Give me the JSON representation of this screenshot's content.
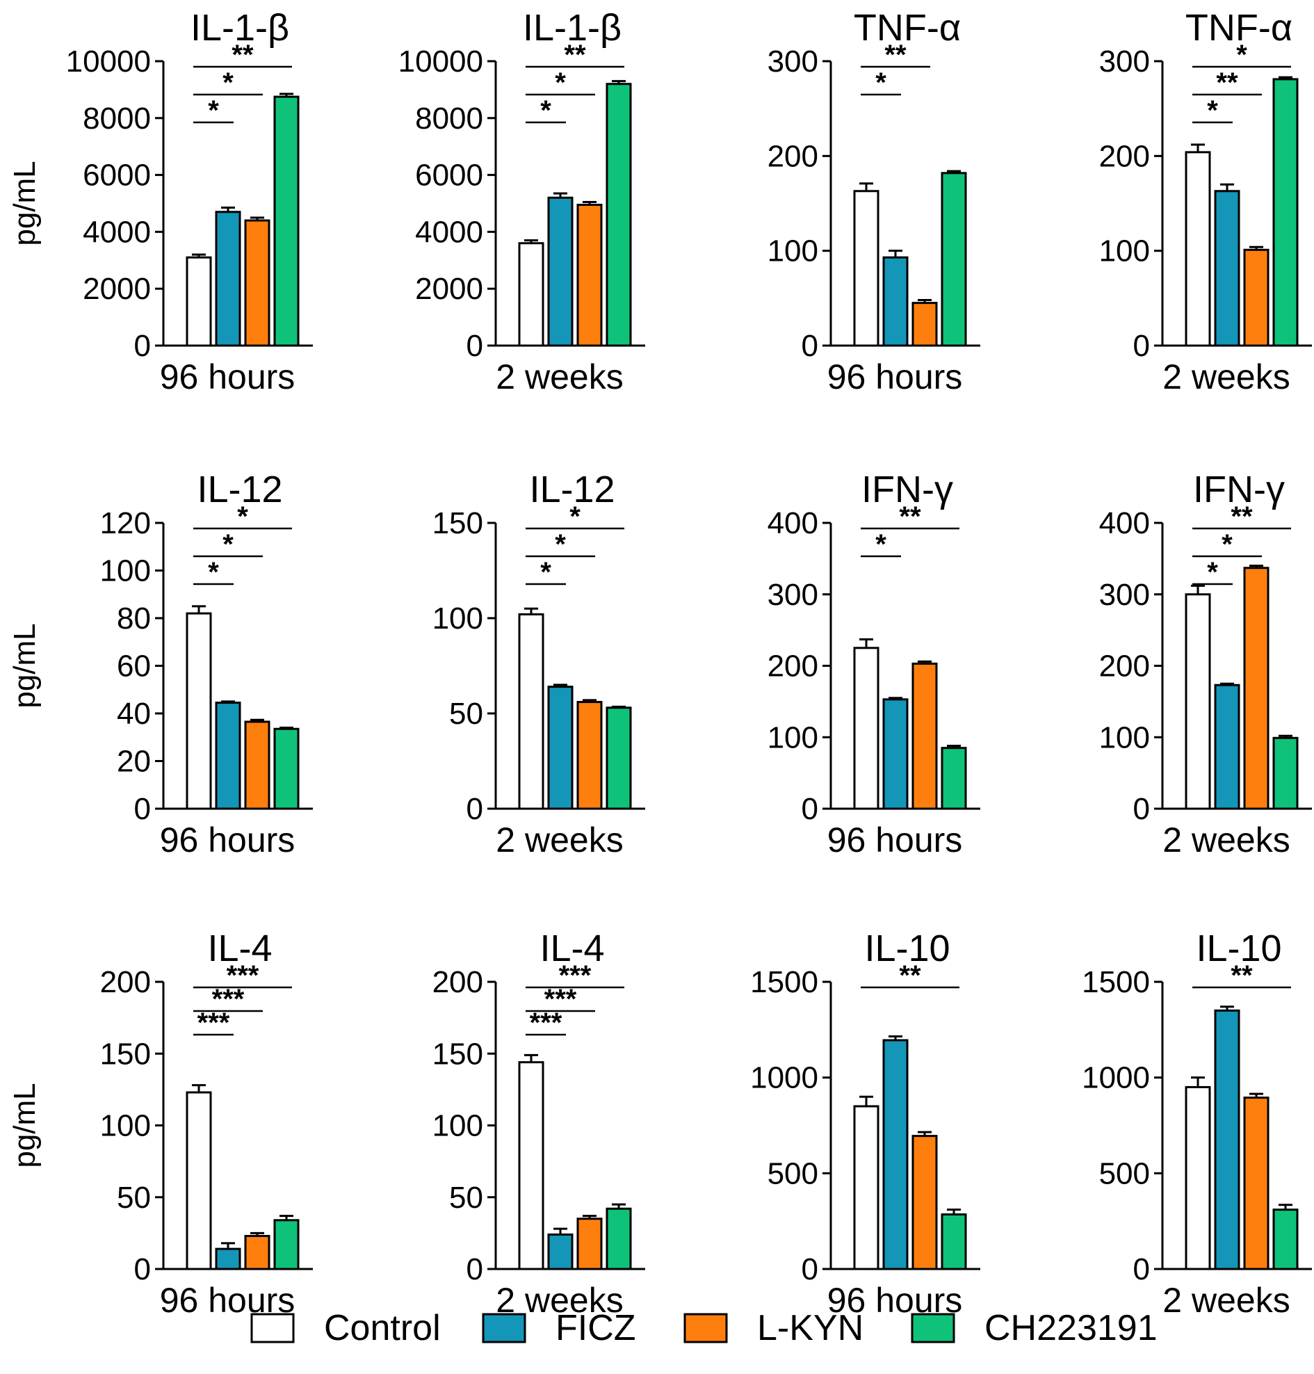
{
  "legend": {
    "items": [
      {
        "label": "Control",
        "color": "#ffffff"
      },
      {
        "label": "FICZ",
        "color": "#1496b8"
      },
      {
        "label": "L-KYN",
        "color": "#ff7f0e"
      },
      {
        "label": "CH223191",
        "color": "#0fc27a"
      }
    ]
  },
  "chart_data": [
    {
      "type": "bar",
      "title": "IL-1-β",
      "ylabel": "pg/mL",
      "xlabel": "96 hours",
      "categories": [
        "Control",
        "FICZ",
        "L-KYN",
        "CH223191"
      ],
      "values": [
        3100,
        4700,
        4400,
        8750
      ],
      "errors": [
        100,
        150,
        100,
        100
      ],
      "ylim": [
        0,
        10000
      ],
      "yticks": [
        "0",
        "2000",
        "4000",
        "6000",
        "8000",
        "10000"
      ],
      "significance": [
        {
          "from": 0,
          "to": 1,
          "label": "*"
        },
        {
          "from": 0,
          "to": 2,
          "label": "*"
        },
        {
          "from": 0,
          "to": 3,
          "label": "**"
        }
      ]
    },
    {
      "type": "bar",
      "title": "IL-1-β",
      "ylabel": "",
      "xlabel": "2 weeks",
      "categories": [
        "Control",
        "FICZ",
        "L-KYN",
        "CH223191"
      ],
      "values": [
        3600,
        5200,
        4950,
        9200
      ],
      "errors": [
        100,
        150,
        100,
        100
      ],
      "ylim": [
        0,
        10000
      ],
      "yticks": [
        "0",
        "2000",
        "4000",
        "6000",
        "8000",
        "10000"
      ],
      "significance": [
        {
          "from": 0,
          "to": 1,
          "label": "*"
        },
        {
          "from": 0,
          "to": 2,
          "label": "*"
        },
        {
          "from": 0,
          "to": 3,
          "label": "**"
        }
      ]
    },
    {
      "type": "bar",
      "title": "TNF-α",
      "ylabel": "",
      "xlabel": "96 hours",
      "categories": [
        "Control",
        "FICZ",
        "L-KYN",
        "CH223191"
      ],
      "values": [
        163,
        93,
        45,
        182
      ],
      "errors": [
        8,
        7,
        3,
        2
      ],
      "ylim": [
        0,
        300
      ],
      "yticks": [
        "0",
        "100",
        "200",
        "300"
      ],
      "significance": [
        {
          "from": 0,
          "to": 1,
          "label": "*"
        },
        {
          "from": 0,
          "to": 2,
          "label": "**"
        }
      ]
    },
    {
      "type": "bar",
      "title": "TNF-α",
      "ylabel": "",
      "xlabel": "2 weeks",
      "categories": [
        "Control",
        "FICZ",
        "L-KYN",
        "CH223191"
      ],
      "values": [
        204,
        163,
        101,
        281
      ],
      "errors": [
        8,
        7,
        3,
        2
      ],
      "ylim": [
        0,
        300
      ],
      "yticks": [
        "0",
        "100",
        "200",
        "300"
      ],
      "significance": [
        {
          "from": 0,
          "to": 1,
          "label": "*"
        },
        {
          "from": 0,
          "to": 2,
          "label": "**"
        },
        {
          "from": 0,
          "to": 3,
          "label": "*"
        }
      ]
    },
    {
      "type": "bar",
      "title": "IL-12",
      "ylabel": "pg/mL",
      "xlabel": "96 hours",
      "categories": [
        "Control",
        "FICZ",
        "L-KYN",
        "CH223191"
      ],
      "values": [
        82,
        44.5,
        36.5,
        33.5
      ],
      "errors": [
        3,
        0.5,
        0.8,
        0.5
      ],
      "ylim": [
        0,
        120
      ],
      "yticks": [
        "0",
        "20",
        "40",
        "60",
        "80",
        "100",
        "120"
      ],
      "significance": [
        {
          "from": 0,
          "to": 1,
          "label": "*"
        },
        {
          "from": 0,
          "to": 2,
          "label": "*"
        },
        {
          "from": 0,
          "to": 3,
          "label": "*"
        }
      ]
    },
    {
      "type": "bar",
      "title": "IL-12",
      "ylabel": "",
      "xlabel": "2 weeks",
      "categories": [
        "Control",
        "FICZ",
        "L-KYN",
        "CH223191"
      ],
      "values": [
        102,
        64,
        56,
        53
      ],
      "errors": [
        3,
        1,
        1,
        0.5
      ],
      "ylim": [
        0,
        150
      ],
      "yticks": [
        "0",
        "50",
        "100",
        "150"
      ],
      "significance": [
        {
          "from": 0,
          "to": 1,
          "label": "*"
        },
        {
          "from": 0,
          "to": 2,
          "label": "*"
        },
        {
          "from": 0,
          "to": 3,
          "label": "*"
        }
      ]
    },
    {
      "type": "bar",
      "title": "IFN-γ",
      "ylabel": "",
      "xlabel": "96 hours",
      "categories": [
        "Control",
        "FICZ",
        "L-KYN",
        "CH223191"
      ],
      "values": [
        225,
        153,
        203,
        85
      ],
      "errors": [
        12,
        2,
        3,
        3
      ],
      "ylim": [
        0,
        400
      ],
      "yticks": [
        "0",
        "100",
        "200",
        "300",
        "400"
      ],
      "significance": [
        {
          "from": 0,
          "to": 1,
          "label": "*"
        },
        {
          "from": 0,
          "to": 3,
          "label": "**"
        }
      ]
    },
    {
      "type": "bar",
      "title": "IFN-γ",
      "ylabel": "",
      "xlabel": "2 weeks",
      "categories": [
        "Control",
        "FICZ",
        "L-KYN",
        "CH223191"
      ],
      "values": [
        300,
        173,
        337,
        99
      ],
      "errors": [
        12,
        2,
        3,
        3
      ],
      "ylim": [
        0,
        400
      ],
      "yticks": [
        "0",
        "100",
        "200",
        "300",
        "400"
      ],
      "significance": [
        {
          "from": 0,
          "to": 1,
          "label": "*"
        },
        {
          "from": 0,
          "to": 2,
          "label": "*"
        },
        {
          "from": 0,
          "to": 3,
          "label": "**"
        }
      ]
    },
    {
      "type": "bar",
      "title": "IL-4",
      "ylabel": "pg/mL",
      "xlabel": "96 hours",
      "categories": [
        "Control",
        "FICZ",
        "L-KYN",
        "CH223191"
      ],
      "values": [
        123,
        14,
        23,
        34
      ],
      "errors": [
        5,
        4,
        2,
        3
      ],
      "ylim": [
        0,
        200
      ],
      "yticks": [
        "0",
        "50",
        "100",
        "150",
        "200"
      ],
      "significance": [
        {
          "from": 0,
          "to": 1,
          "label": "***"
        },
        {
          "from": 0,
          "to": 2,
          "label": "***"
        },
        {
          "from": 0,
          "to": 3,
          "label": "***"
        }
      ]
    },
    {
      "type": "bar",
      "title": "IL-4",
      "ylabel": "",
      "xlabel": "2 weeks",
      "categories": [
        "Control",
        "FICZ",
        "L-KYN",
        "CH223191"
      ],
      "values": [
        144,
        24,
        35,
        42
      ],
      "errors": [
        5,
        4,
        2,
        3
      ],
      "ylim": [
        0,
        200
      ],
      "yticks": [
        "0",
        "50",
        "100",
        "150",
        "200"
      ],
      "significance": [
        {
          "from": 0,
          "to": 1,
          "label": "***"
        },
        {
          "from": 0,
          "to": 2,
          "label": "***"
        },
        {
          "from": 0,
          "to": 3,
          "label": "***"
        }
      ]
    },
    {
      "type": "bar",
      "title": "IL-10",
      "ylabel": "",
      "xlabel": "96 hours",
      "categories": [
        "Control",
        "FICZ",
        "L-KYN",
        "CH223191"
      ],
      "values": [
        850,
        1195,
        695,
        285
      ],
      "errors": [
        50,
        20,
        20,
        25
      ],
      "ylim": [
        0,
        1500
      ],
      "yticks": [
        "0",
        "500",
        "1000",
        "1500"
      ],
      "significance": [
        {
          "from": 0,
          "to": 3,
          "label": "**"
        }
      ]
    },
    {
      "type": "bar",
      "title": "IL-10",
      "ylabel": "",
      "xlabel": "2 weeks",
      "categories": [
        "Control",
        "FICZ",
        "L-KYN",
        "CH223191"
      ],
      "values": [
        950,
        1350,
        895,
        310
      ],
      "errors": [
        50,
        20,
        20,
        25
      ],
      "ylim": [
        0,
        1500
      ],
      "yticks": [
        "0",
        "500",
        "1000",
        "1500"
      ],
      "significance": [
        {
          "from": 0,
          "to": 3,
          "label": "**"
        }
      ]
    }
  ]
}
